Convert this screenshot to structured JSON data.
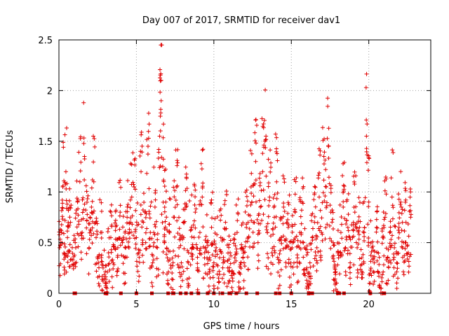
{
  "chart_data": {
    "type": "scatter",
    "title": "Day 007 of 2017, SRMTID for receiver dav1",
    "xlabel": "GPS time / hours",
    "ylabel": "SRMTID / TECUs",
    "xlim": [
      0,
      24
    ],
    "ylim": [
      0,
      2.5
    ],
    "xticks": [
      0,
      5,
      10,
      15,
      20
    ],
    "yticks": [
      0,
      0.5,
      1,
      1.5,
      2,
      2.5
    ],
    "xtick_labels": [
      "0",
      "5",
      "10",
      "15",
      "20"
    ],
    "ytick_labels": [
      "0",
      "0.5",
      "1",
      "1.5",
      "2",
      "2.5"
    ],
    "grid": true,
    "legend": "none",
    "series_color": "#e00000",
    "series": [
      {
        "name": "SRMTID",
        "marker": "plus",
        "x": [
          0.05,
          0.15,
          0.25,
          0.35,
          0.45,
          0.55,
          0.65,
          0.75,
          0.9,
          1.05,
          1.2,
          1.35,
          1.5,
          1.65,
          1.8,
          1.95,
          2.1,
          2.25,
          2.4,
          2.55,
          2.7,
          2.85,
          3.0,
          3.1,
          3.2,
          3.35,
          3.5,
          3.65,
          3.8,
          3.95,
          4.1,
          4.25,
          4.4,
          4.55,
          4.7,
          4.85,
          5.0,
          5.15,
          5.3,
          5.45,
          5.6,
          5.75,
          5.9,
          6.05,
          6.2,
          6.35,
          6.5,
          6.6,
          6.7,
          6.8,
          6.9,
          7.0,
          7.15,
          7.3,
          7.45,
          7.6,
          7.75,
          7.9,
          8.05,
          8.2,
          8.35,
          8.5,
          8.65,
          8.8,
          8.95,
          9.1,
          9.25,
          9.4,
          9.55,
          9.7,
          9.85,
          10.0,
          10.15,
          10.3,
          10.45,
          10.6,
          10.75,
          10.9,
          11.05,
          11.2,
          11.35,
          11.5,
          11.65,
          11.8,
          11.95,
          12.1,
          12.25,
          12.4,
          12.55,
          12.7,
          12.85,
          13.0,
          13.15,
          13.3,
          13.45,
          13.6,
          13.75,
          13.9,
          14.05,
          14.2,
          14.35,
          14.5,
          14.65,
          14.8,
          14.95,
          15.1,
          15.25,
          15.4,
          15.55,
          15.7,
          15.85,
          16.0,
          16.1,
          16.2,
          16.35,
          16.5,
          16.65,
          16.8,
          16.95,
          17.1,
          17.25,
          17.4,
          17.55,
          17.7,
          17.8,
          17.9,
          18.05,
          18.2,
          18.35,
          18.5,
          18.65,
          18.8,
          18.95,
          19.1,
          19.25,
          19.4,
          19.55,
          19.7,
          19.85,
          20.0,
          20.1,
          20.2,
          20.35,
          20.5,
          20.65,
          20.8,
          20.9,
          21.05,
          21.2,
          21.35,
          21.5,
          21.65,
          21.8,
          21.95,
          22.1,
          22.25,
          22.4,
          22.55,
          22.7
        ],
        "y": [
          0.45,
          0.62,
          1.05,
          0.38,
          1.2,
          0.55,
          0.42,
          0.7,
          0.33,
          0.5,
          0.9,
          1.1,
          0.6,
          1.35,
          0.72,
          0.45,
          0.85,
          1.1,
          0.55,
          0.3,
          0.6,
          0.25,
          0.1,
          0.05,
          0.4,
          0.55,
          0.3,
          0.62,
          0.45,
          0.8,
          0.5,
          0.35,
          0.75,
          0.6,
          0.95,
          1.05,
          0.55,
          0.4,
          1.2,
          0.7,
          0.5,
          1.45,
          0.6,
          0.3,
          0.85,
          0.45,
          1.55,
          2.1,
          1.25,
          0.5,
          0.9,
          0.35,
          0.6,
          0.2,
          0.75,
          1.05,
          0.45,
          0.3,
          0.55,
          0.85,
          0.3,
          0.62,
          0.45,
          0.8,
          0.25,
          0.6,
          0.95,
          0.35,
          0.5,
          0.2,
          0.65,
          0.3,
          0.45,
          0.15,
          0.55,
          0.3,
          0.7,
          0.25,
          0.4,
          0.15,
          0.35,
          0.6,
          0.2,
          0.45,
          0.3,
          0.65,
          0.55,
          1.05,
          0.7,
          1.3,
          0.5,
          0.85,
          1.2,
          1.5,
          0.6,
          0.95,
          0.4,
          0.75,
          1.1,
          0.3,
          0.55,
          0.85,
          0.45,
          0.65,
          0.3,
          0.5,
          0.8,
          0.35,
          0.6,
          0.9,
          0.45,
          0.25,
          0.05,
          0.3,
          0.55,
          0.7,
          0.45,
          0.95,
          0.6,
          1.35,
          1.05,
          1.45,
          0.8,
          0.5,
          0.25,
          0.1,
          0.35,
          0.6,
          0.85,
          0.45,
          0.65,
          0.3,
          0.55,
          0.8,
          0.45,
          0.65,
          0.35,
          0.6,
          1.55,
          0.9,
          0.1,
          0.45,
          0.3,
          0.65,
          0.2,
          0.05,
          0.55,
          0.75,
          0.35,
          0.6,
          0.95,
          0.45,
          0.3,
          0.65,
          0.85,
          0.5,
          0.7,
          0.4,
          0.75
        ],
        "y_floor_markers_x": [
          1.0,
          1.05,
          3.0,
          4.0,
          5.0,
          6.0,
          7.05,
          7.4,
          7.85,
          8.2,
          8.55,
          9.0,
          9.6,
          10.0,
          10.55,
          11.0,
          11.45,
          12.1,
          12.8,
          14.0,
          14.25,
          15.0,
          16.2,
          16.35,
          18.0,
          18.1,
          18.4,
          20.1,
          21.0
        ]
      }
    ]
  }
}
